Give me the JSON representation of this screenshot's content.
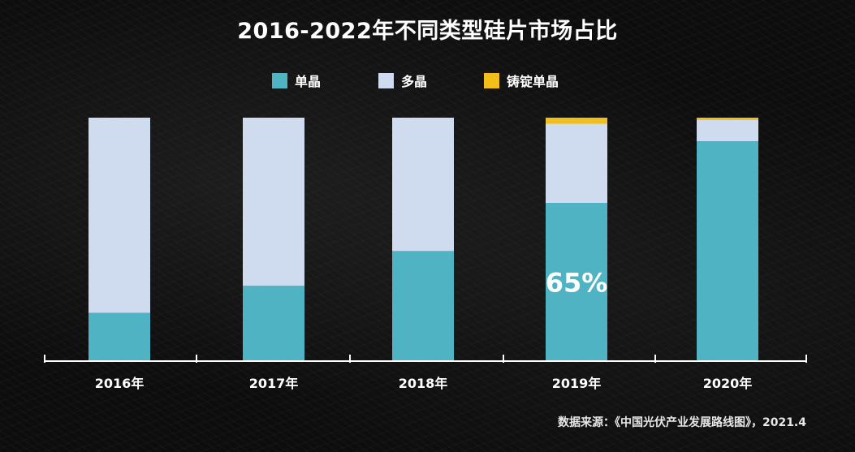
{
  "chart_data": {
    "type": "bar",
    "stacked": true,
    "title": "2016-2022年不同类型硅片市场占比",
    "categories": [
      "2016年",
      "2017年",
      "2018年",
      "2019年",
      "2020年"
    ],
    "series": [
      {
        "name": "单晶",
        "color": "#4fb3c4",
        "values": [
          19.8,
          30.9,
          45.2,
          65.0,
          90.3
        ]
      },
      {
        "name": "多晶",
        "color": "#cfdcf0",
        "values": [
          80.2,
          69.1,
          54.8,
          32.5,
          8.7
        ]
      },
      {
        "name": "铸锭单晶",
        "color": "#f2be19",
        "values": [
          0.0,
          0.0,
          0.0,
          2.5,
          1.0
        ]
      }
    ],
    "ylim": [
      0,
      100
    ],
    "annotations": [
      {
        "category": "2019年",
        "series": "单晶",
        "text": "65%"
      }
    ],
    "legend_position": "top-center",
    "grid": false
  },
  "source": "数据来源：《中国光伏产业发展路线图》，2021.4"
}
